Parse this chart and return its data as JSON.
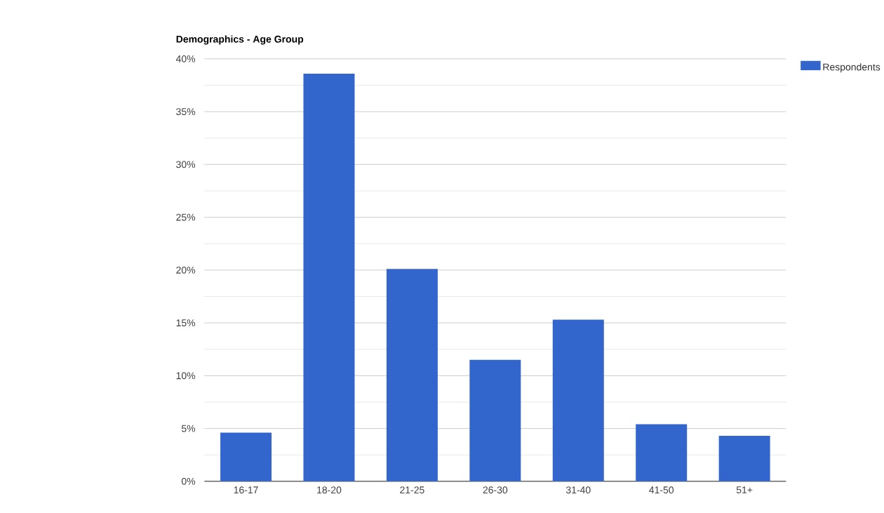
{
  "chart_data": {
    "type": "bar",
    "title": "Demographics - Age Group",
    "categories": [
      "16-17",
      "18-20",
      "21-25",
      "26-30",
      "31-40",
      "41-50",
      "51+"
    ],
    "series": [
      {
        "name": "Respondents",
        "color": "#3366cc",
        "values": [
          4.6,
          38.6,
          20.1,
          11.5,
          15.3,
          5.4,
          4.3
        ]
      }
    ],
    "ylim": [
      0,
      40
    ],
    "yticks": [
      {
        "value": 0,
        "label": "0%"
      },
      {
        "value": 2.5,
        "label": null
      },
      {
        "value": 5,
        "label": "5%"
      },
      {
        "value": 7.5,
        "label": null
      },
      {
        "value": 10,
        "label": "10%"
      },
      {
        "value": 12.5,
        "label": null
      },
      {
        "value": 15,
        "label": "15%"
      },
      {
        "value": 17.5,
        "label": null
      },
      {
        "value": 20,
        "label": "20%"
      },
      {
        "value": 22.5,
        "label": null
      },
      {
        "value": 25,
        "label": "25%"
      },
      {
        "value": 27.5,
        "label": null
      },
      {
        "value": 30,
        "label": "30%"
      },
      {
        "value": 32.5,
        "label": null
      },
      {
        "value": 35,
        "label": "35%"
      },
      {
        "value": 37.5,
        "label": null
      },
      {
        "value": 40,
        "label": "40%"
      }
    ],
    "grid": "y",
    "legend": "right"
  }
}
